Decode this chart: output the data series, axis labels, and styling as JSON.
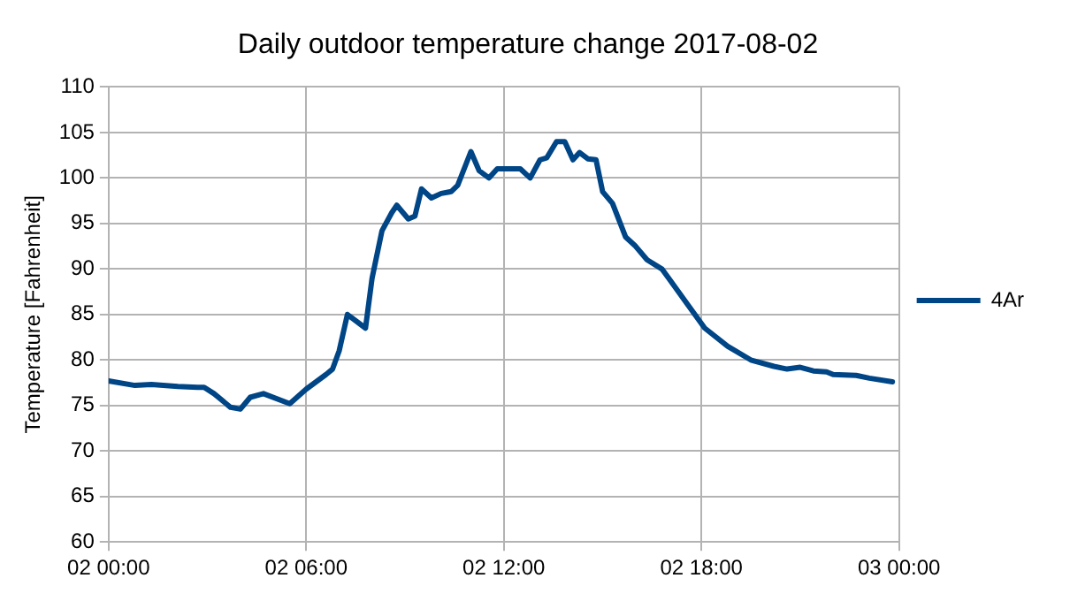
{
  "chart_data": {
    "type": "line",
    "title": "Daily outdoor temperature change 2017-08-02",
    "ylabel": "Temperature [Fahrenheit]",
    "series": [
      {
        "name": "4Ar",
        "color": "#004586",
        "x": [
          "2017-08-02T00:00",
          "2017-08-02T00:48",
          "2017-08-02T01:18",
          "2017-08-02T02:06",
          "2017-08-02T02:42",
          "2017-08-02T02:54",
          "2017-08-02T03:12",
          "2017-08-02T03:42",
          "2017-08-02T04:00",
          "2017-08-02T04:18",
          "2017-08-02T04:42",
          "2017-08-02T05:30",
          "2017-08-02T06:00",
          "2017-08-02T06:36",
          "2017-08-02T06:48",
          "2017-08-02T07:00",
          "2017-08-02T07:15",
          "2017-08-02T07:48",
          "2017-08-02T08:00",
          "2017-08-02T08:18",
          "2017-08-02T08:36",
          "2017-08-02T08:45",
          "2017-08-02T09:06",
          "2017-08-02T09:18",
          "2017-08-02T09:30",
          "2017-08-02T09:48",
          "2017-08-02T10:06",
          "2017-08-02T10:24",
          "2017-08-02T10:36",
          "2017-08-02T11:00",
          "2017-08-02T11:15",
          "2017-08-02T11:33",
          "2017-08-02T11:48",
          "2017-08-02T12:30",
          "2017-08-02T12:48",
          "2017-08-02T13:06",
          "2017-08-02T13:18",
          "2017-08-02T13:36",
          "2017-08-02T13:51",
          "2017-08-02T14:06",
          "2017-08-02T14:18",
          "2017-08-02T14:33",
          "2017-08-02T14:48",
          "2017-08-02T15:00",
          "2017-08-02T15:18",
          "2017-08-02T15:42",
          "2017-08-02T16:00",
          "2017-08-02T16:21",
          "2017-08-02T16:48",
          "2017-08-02T17:00",
          "2017-08-02T17:36",
          "2017-08-02T18:06",
          "2017-08-02T18:48",
          "2017-08-02T19:30",
          "2017-08-02T20:12",
          "2017-08-02T20:36",
          "2017-08-02T21:00",
          "2017-08-02T21:24",
          "2017-08-02T21:48",
          "2017-08-02T22:00",
          "2017-08-02T22:42",
          "2017-08-02T23:06",
          "2017-08-02T23:48"
        ],
        "values": [
          77.7,
          77.2,
          77.3,
          77.1,
          77.0,
          77.0,
          76.3,
          74.8,
          74.6,
          75.9,
          76.3,
          75.2,
          76.8,
          78.4,
          79.0,
          81,
          85,
          83.5,
          89,
          94.2,
          96.2,
          97.0,
          95.5,
          95.8,
          98.8,
          97.8,
          98.3,
          98.5,
          99.2,
          102.9,
          100.8,
          100.0,
          101,
          101,
          100,
          102,
          102.2,
          104,
          104,
          102,
          102.8,
          102.1,
          102,
          98.5,
          97.2,
          93.5,
          92.5,
          91,
          90,
          89,
          86,
          83.5,
          81.5,
          80,
          79.3,
          79,
          79.2,
          78.8,
          78.7,
          78.4,
          78.3,
          78.0,
          77.6
        ]
      }
    ],
    "xlim": [
      "2017-08-02T00:00",
      "2017-08-03T00:00"
    ],
    "xticks": [
      {
        "value": "2017-08-02T00:00",
        "label": "02 00:00"
      },
      {
        "value": "2017-08-02T06:00",
        "label": "02 06:00"
      },
      {
        "value": "2017-08-02T12:00",
        "label": "02 12:00"
      },
      {
        "value": "2017-08-02T18:00",
        "label": "02 18:00"
      },
      {
        "value": "2017-08-03T00:00",
        "label": "03 00:00"
      }
    ],
    "ylim": [
      60,
      110
    ],
    "yticks": [
      60,
      65,
      70,
      75,
      80,
      85,
      90,
      95,
      100,
      105,
      110
    ],
    "grid": true,
    "legend": "right",
    "marker": "none",
    "line_style": "solid"
  }
}
